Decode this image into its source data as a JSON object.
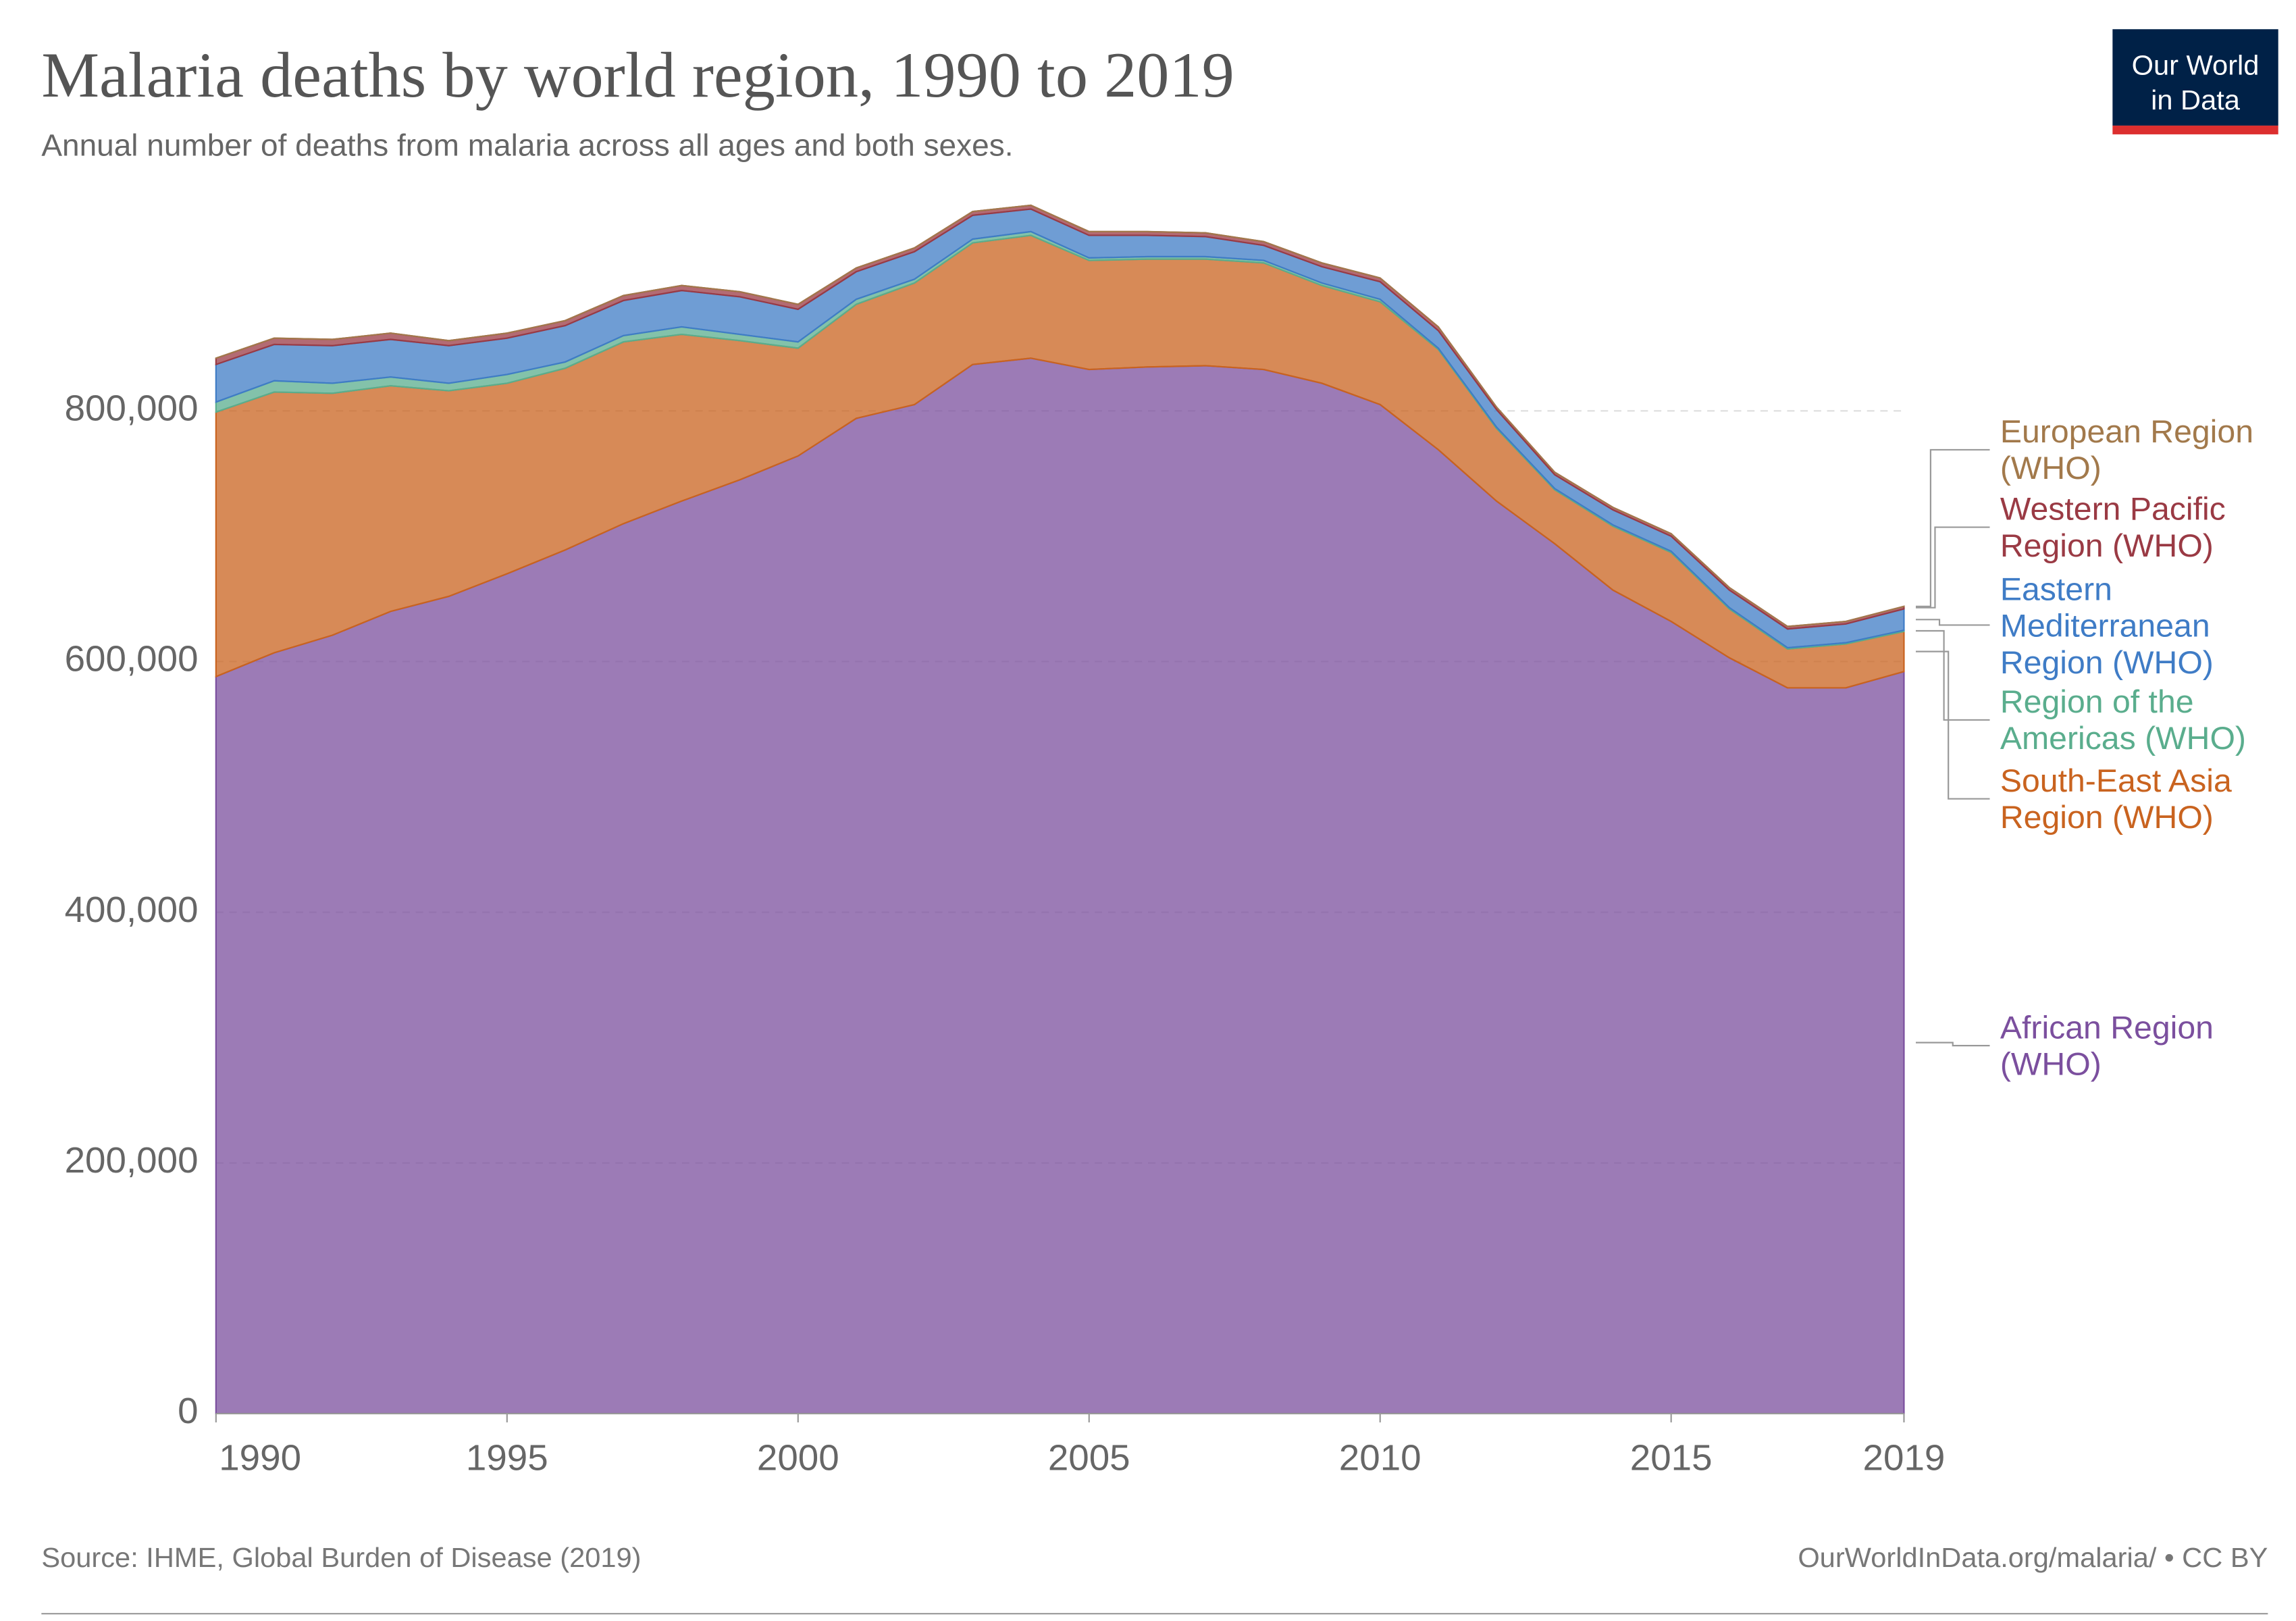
{
  "chart_data": {
    "type": "stacked_area",
    "title": "Malaria deaths by world region, 1990 to 2019",
    "subtitle": "Annual number of deaths from malaria across all ages and both sexes.",
    "source": "Source: IHME, Global Burden of Disease (2019)",
    "credit": "OurWorldInData.org/malaria/ • CC BY",
    "logo": [
      "Our World",
      "in Data"
    ],
    "x": [
      1990,
      1991,
      1992,
      1993,
      1994,
      1995,
      1996,
      1997,
      1998,
      1999,
      2000,
      2001,
      2002,
      2003,
      2004,
      2005,
      2006,
      2007,
      2008,
      2009,
      2010,
      2011,
      2012,
      2013,
      2014,
      2015,
      2016,
      2017,
      2018,
      2019
    ],
    "xlim": [
      1990,
      2019
    ],
    "xticks": [
      1990,
      1995,
      2000,
      2005,
      2010,
      2015,
      2019
    ],
    "ylim": [
      0,
      960000
    ],
    "yticks": [
      0,
      {
        "value": 200000,
        "label": "200,000"
      },
      {
        "value": 400000,
        "label": "400,000"
      },
      {
        "value": 600000,
        "label": "600,000"
      },
      {
        "value": 800000,
        "label": "800,000"
      }
    ],
    "grid": true,
    "series": [
      {
        "name": "African Region (WHO)",
        "color": "#7b4f9e",
        "values": [
          588000,
          607000,
          621000,
          640000,
          652000,
          670000,
          689000,
          710000,
          728000,
          745000,
          764000,
          794000,
          805000,
          837000,
          842000,
          833000,
          835000,
          836000,
          833000,
          822000,
          805000,
          769000,
          728000,
          694000,
          657000,
          632000,
          603000,
          579000,
          579000,
          592000
        ]
      },
      {
        "name": "South-East Asia Region (WHO)",
        "color": "#c9631f",
        "values": [
          211000,
          208000,
          193000,
          180000,
          164000,
          152000,
          145000,
          145000,
          133000,
          111000,
          86000,
          91000,
          97000,
          97000,
          98000,
          87000,
          86000,
          85000,
          85000,
          78000,
          82000,
          80000,
          58000,
          43000,
          51000,
          55000,
          39000,
          31000,
          35000,
          32000
        ]
      },
      {
        "name": "Region of the Americas (WHO)",
        "color": "#5aad8d",
        "values": [
          8000,
          9000,
          8000,
          7000,
          6000,
          7000,
          5000,
          5000,
          6000,
          5000,
          5000,
          4000,
          3000,
          3000,
          3000,
          2000,
          2000,
          2000,
          2000,
          2000,
          2000,
          1000,
          1000,
          1000,
          1000,
          1000,
          1000,
          1000,
          1000,
          1000
        ]
      },
      {
        "name": "Eastern Mediterranean Region (WHO)",
        "color": "#3f7cc6",
        "values": [
          30000,
          29000,
          30000,
          30000,
          30000,
          29000,
          29000,
          28000,
          29000,
          30000,
          26000,
          22000,
          22000,
          19000,
          18000,
          18000,
          17000,
          16000,
          12000,
          13000,
          14000,
          14000,
          14000,
          11000,
          12000,
          12000,
          14000,
          15000,
          15000,
          17000
        ]
      },
      {
        "name": "Western Pacific Region (WHO)",
        "color": "#9a3a44",
        "values": [
          5000,
          5000,
          5000,
          5000,
          4000,
          4000,
          4000,
          4000,
          4000,
          4000,
          4000,
          3000,
          3000,
          3000,
          3000,
          3000,
          3000,
          3000,
          3000,
          3000,
          3000,
          3000,
          2000,
          2000,
          2000,
          2000,
          2000,
          2000,
          2000,
          2000
        ]
      },
      {
        "name": "European Region (WHO)",
        "color": "#a2794b",
        "values": [
          10,
          10,
          10,
          10,
          10,
          10,
          10,
          10,
          10,
          10,
          10,
          10,
          10,
          10,
          10,
          10,
          10,
          10,
          10,
          10,
          10,
          10,
          10,
          10,
          10,
          10,
          10,
          10,
          10,
          10
        ]
      }
    ]
  }
}
